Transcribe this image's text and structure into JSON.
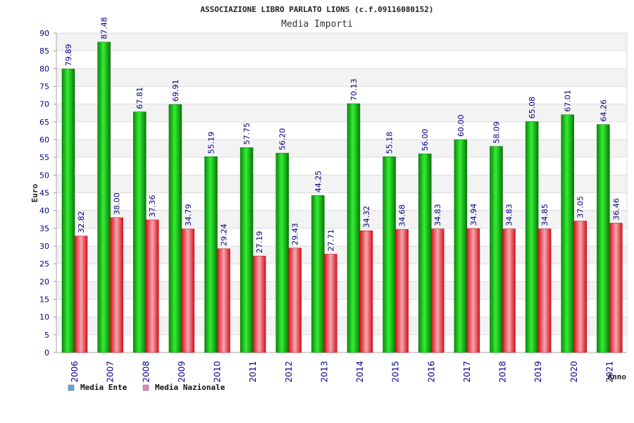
{
  "chart_data": {
    "type": "bar",
    "title": "ASSOCIAZIONE LIBRO PARLATO LIONS (c.f.09116080152)",
    "subtitle": "Media Importi",
    "xlabel": "Anno",
    "ylabel": "Euro",
    "ylim": [
      0,
      90
    ],
    "y_tick_step": 5,
    "categories": [
      "2006",
      "2007",
      "2008",
      "2009",
      "2010",
      "2011",
      "2012",
      "2013",
      "2014",
      "2015",
      "2016",
      "2017",
      "2018",
      "2019",
      "2020",
      "2021"
    ],
    "series": [
      {
        "name": "Media Ente",
        "color": "#1bc41b",
        "legend_color": "#66a3e0",
        "values": [
          79.89,
          87.48,
          67.81,
          69.91,
          55.19,
          57.75,
          56.2,
          44.25,
          70.13,
          55.18,
          56.0,
          60.0,
          58.09,
          65.08,
          67.01,
          64.26
        ],
        "labels": [
          "79.89",
          "87.48",
          "67.81",
          "69.91",
          "55.19",
          "57.75",
          "56.20",
          "44.25",
          "70.13",
          "55.18",
          "56.00",
          "60.00",
          "58.09",
          "65.08",
          "67.01",
          "64.26"
        ]
      },
      {
        "name": "Media Nazionale",
        "color": "#e8222a",
        "legend_color": "#dd88bb",
        "values": [
          32.82,
          38.0,
          37.36,
          34.79,
          29.24,
          27.19,
          29.43,
          27.71,
          34.32,
          34.68,
          34.83,
          34.94,
          34.83,
          34.85,
          37.05,
          36.46
        ],
        "labels": [
          "32.82",
          "38.00",
          "37.36",
          "34.79",
          "29.24",
          "27.19",
          "29.43",
          "27.71",
          "34.32",
          "34.68",
          "34.83",
          "34.94",
          "34.83",
          "34.85",
          "37.05",
          "36.46"
        ]
      }
    ],
    "grid": true,
    "grid_bands": [
      "#ffffff",
      "#f3f3f3"
    ],
    "legend_position": "bottom-left"
  }
}
